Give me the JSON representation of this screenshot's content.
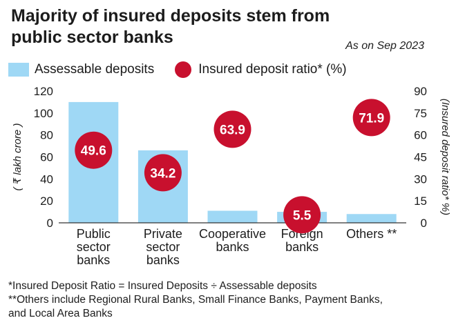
{
  "title_line1": "Majority of insured deposits stem from",
  "title_line2": "public sector banks",
  "subtitle": "As on Sep 2023",
  "legend": {
    "bar_label": "Assessable deposits",
    "dot_label": "Insured deposit ratio* (%)"
  },
  "footnotes": {
    "line1": "*Insured Deposit Ratio = Insured Deposits ÷ Assessable deposits",
    "line2": "**Others include Regional Rural Banks, Small Finance Banks, Payment Banks,",
    "line3": "and Local Area Banks"
  },
  "colors": {
    "bar": "#9fd8f5",
    "dot": "#c8102e",
    "dot_text": "#ffffff",
    "axis": "#333333"
  },
  "chart_data": {
    "type": "bar",
    "categories": [
      [
        "Public",
        "sector",
        "banks"
      ],
      [
        "Private",
        "sector",
        "banks"
      ],
      [
        "Cooperative",
        "banks"
      ],
      [
        "Foreign",
        "banks"
      ],
      [
        "Others **"
      ]
    ],
    "series": [
      {
        "name": "Assessable deposits",
        "type": "bar",
        "axis": "left",
        "values": [
          110,
          66,
          11,
          10,
          8
        ]
      },
      {
        "name": "Insured deposit ratio* (%)",
        "type": "scatter",
        "axis": "right",
        "values": [
          49.6,
          34.2,
          63.9,
          5.5,
          71.9
        ],
        "labels": [
          "49.6",
          "34.2",
          "63.9",
          "5.5",
          "71.9"
        ]
      }
    ],
    "ylabel": "( ₹ lakh crore )",
    "y2label": "(Insured deposit ratio* %)",
    "ylim": [
      0,
      120
    ],
    "y2lim": [
      0,
      90
    ],
    "yticks": [
      0,
      20,
      40,
      60,
      80,
      100,
      120
    ],
    "y2ticks": [
      0,
      15,
      30,
      45,
      60,
      75,
      90
    ],
    "grid": false,
    "legend_position": "top-left"
  }
}
